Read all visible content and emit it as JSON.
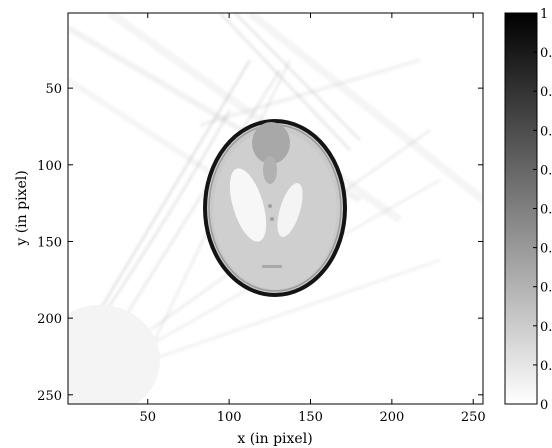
{
  "chart_data": {
    "type": "heatmap",
    "title": "",
    "xlabel": "x (in pixel)",
    "ylabel": "y (in pixel)",
    "x_ticks": [
      50,
      100,
      150,
      200,
      250
    ],
    "y_ticks": [
      50,
      100,
      150,
      200,
      250
    ],
    "xlim": [
      1,
      256
    ],
    "ylim": [
      256,
      1
    ],
    "y_axis_direction": "down",
    "colormap": "gray-inverted (white = 0, black = 1)",
    "colorbar": {
      "range": [
        0,
        1
      ],
      "tick_labels": [
        "1",
        "0.",
        "0.",
        "0.",
        "0.",
        "0.",
        "0.",
        "0.",
        "0.",
        "0.",
        "0"
      ]
    },
    "image_description_values": {
      "ellipse_center": [
        128,
        129
      ],
      "ellipse_semi_axes": [
        46,
        57
      ]
    }
  },
  "colors": {
    "axes": "#000000",
    "background": "#ffffff",
    "phantom_fill": "#c8c8c8",
    "ellipse_rim": "#141414"
  }
}
